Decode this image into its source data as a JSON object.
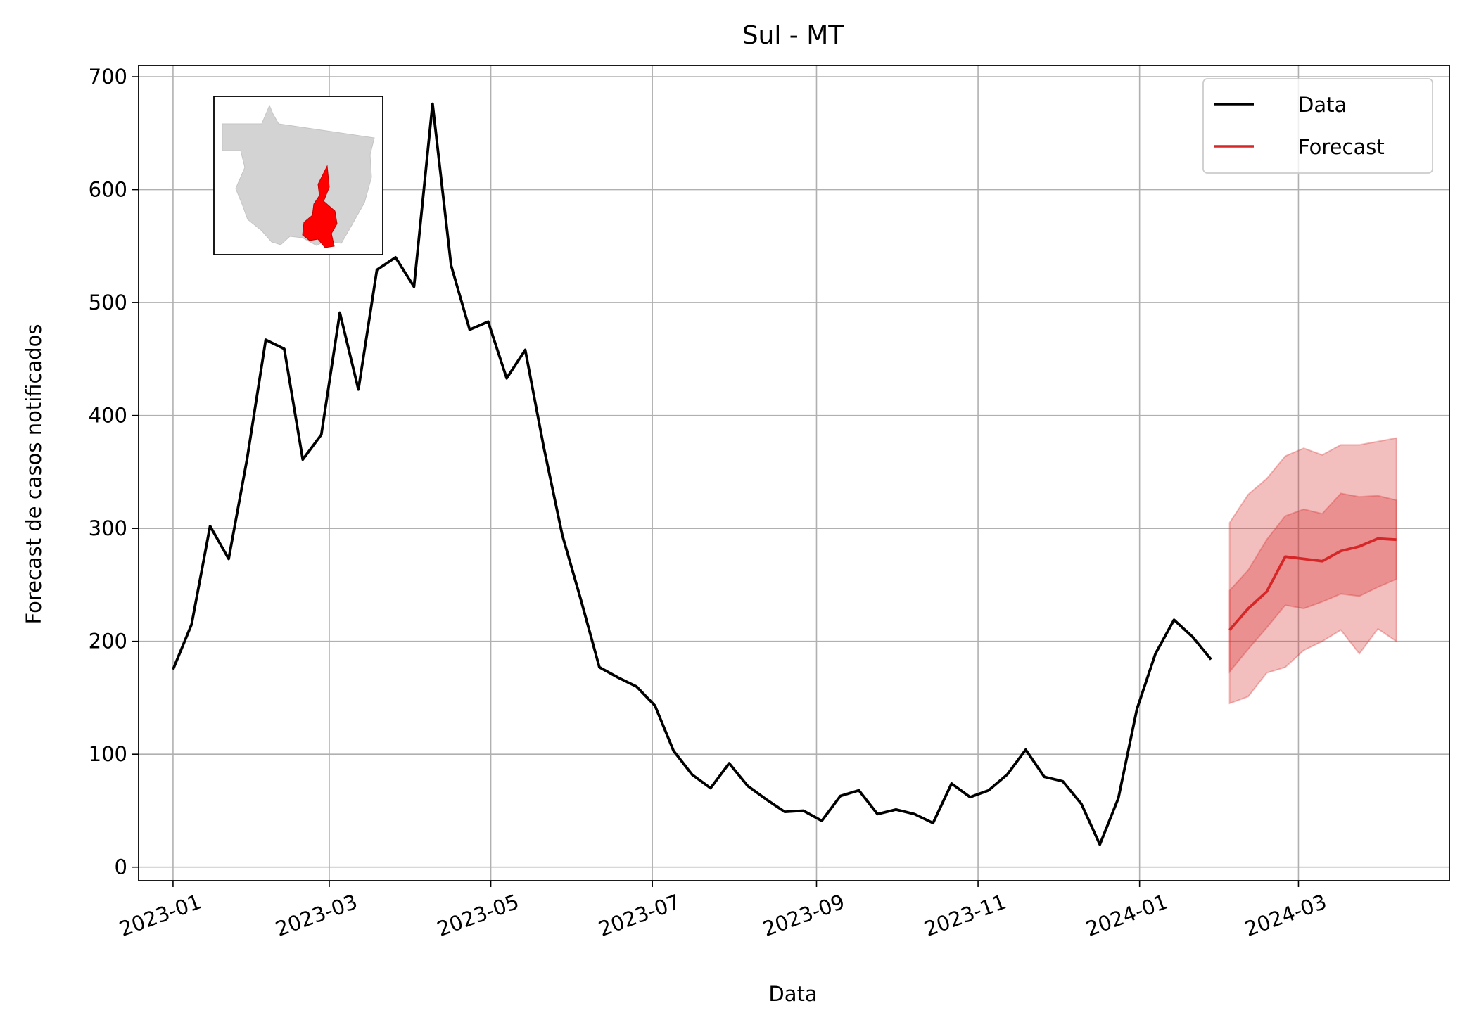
{
  "chart_data": {
    "type": "line",
    "title": "Sul - MT",
    "xlabel": "Data",
    "ylabel": "Forecast de casos notificados",
    "ylim": [
      -12,
      710
    ],
    "xlim": [
      "2022-12-19",
      "2024-04-27"
    ],
    "yticks": [
      0,
      100,
      200,
      300,
      400,
      500,
      600,
      700
    ],
    "xticks": [
      "2023-01",
      "2023-03",
      "2023-05",
      "2023-07",
      "2023-09",
      "2023-11",
      "2024-01",
      "2024-03"
    ],
    "grid": true,
    "legend_position": "top-right",
    "series": [
      {
        "name": "Data",
        "color": "#000000",
        "points": [
          [
            "2023-01-01",
            175
          ],
          [
            "2023-01-08",
            215
          ],
          [
            "2023-01-15",
            302
          ],
          [
            "2023-01-22",
            273
          ],
          [
            "2023-01-29",
            362
          ],
          [
            "2023-02-05",
            467
          ],
          [
            "2023-02-12",
            459
          ],
          [
            "2023-02-19",
            361
          ],
          [
            "2023-02-26",
            383
          ],
          [
            "2023-03-05",
            491
          ],
          [
            "2023-03-12",
            423
          ],
          [
            "2023-03-19",
            529
          ],
          [
            "2023-03-26",
            540
          ],
          [
            "2023-04-02",
            514
          ],
          [
            "2023-04-09",
            676
          ],
          [
            "2023-04-16",
            533
          ],
          [
            "2023-04-23",
            476
          ],
          [
            "2023-04-30",
            483
          ],
          [
            "2023-05-07",
            433
          ],
          [
            "2023-05-14",
            458
          ],
          [
            "2023-05-21",
            372
          ],
          [
            "2023-05-28",
            294
          ],
          [
            "2023-06-04",
            237
          ],
          [
            "2023-06-11",
            177
          ],
          [
            "2023-06-18",
            168
          ],
          [
            "2023-06-25",
            160
          ],
          [
            "2023-07-02",
            143
          ],
          [
            "2023-07-09",
            103
          ],
          [
            "2023-07-16",
            82
          ],
          [
            "2023-07-23",
            70
          ],
          [
            "2023-07-30",
            92
          ],
          [
            "2023-08-06",
            72
          ],
          [
            "2023-08-13",
            60
          ],
          [
            "2023-08-20",
            49
          ],
          [
            "2023-08-27",
            50
          ],
          [
            "2023-09-03",
            41
          ],
          [
            "2023-09-10",
            63
          ],
          [
            "2023-09-17",
            68
          ],
          [
            "2023-09-24",
            47
          ],
          [
            "2023-10-01",
            51
          ],
          [
            "2023-10-08",
            47
          ],
          [
            "2023-10-15",
            39
          ],
          [
            "2023-10-22",
            74
          ],
          [
            "2023-10-29",
            62
          ],
          [
            "2023-11-05",
            68
          ],
          [
            "2023-11-12",
            82
          ],
          [
            "2023-11-19",
            104
          ],
          [
            "2023-11-26",
            80
          ],
          [
            "2023-12-03",
            76
          ],
          [
            "2023-12-10",
            56
          ],
          [
            "2023-12-17",
            20
          ],
          [
            "2023-12-24",
            61
          ],
          [
            "2023-12-31",
            140
          ],
          [
            "2024-01-07",
            189
          ],
          [
            "2024-01-14",
            219
          ],
          [
            "2024-01-21",
            204
          ],
          [
            "2024-01-28",
            184
          ]
        ]
      },
      {
        "name": "Forecast",
        "color": "#d62728",
        "band_color": "#d62728",
        "points": [
          [
            "2024-02-04",
            210,
            173,
            245,
            145,
            305
          ],
          [
            "2024-02-11",
            229,
            193,
            263,
            151,
            330
          ],
          [
            "2024-02-18",
            244,
            212,
            290,
            172,
            344
          ],
          [
            "2024-02-25",
            275,
            232,
            311,
            177,
            364
          ],
          [
            "2024-03-03",
            273,
            229,
            317,
            192,
            371
          ],
          [
            "2024-03-10",
            271,
            235,
            313,
            200,
            365
          ],
          [
            "2024-03-17",
            280,
            242,
            331,
            210,
            374
          ],
          [
            "2024-03-24",
            284,
            240,
            328,
            189,
            374
          ],
          [
            "2024-03-31",
            291,
            248,
            329,
            211,
            377
          ],
          [
            "2024-04-07",
            290,
            255,
            325,
            200,
            380
          ]
        ]
      }
    ],
    "inset": {
      "state_color": "#d3d3d3",
      "region_color": "#ff0000"
    }
  }
}
